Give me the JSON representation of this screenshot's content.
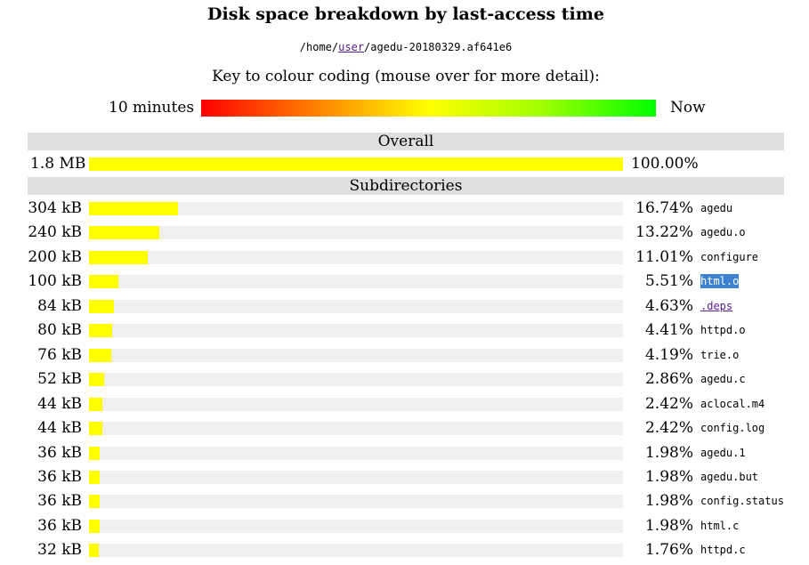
{
  "title": "Disk space breakdown by last-access time",
  "path": {
    "prefix": "/home/",
    "link": "user",
    "suffix": "/agedu-20180329.af641e6"
  },
  "key": {
    "title": "Key to colour coding (mouse over for more detail):",
    "left_label": "10 minutes",
    "right_label": "Now"
  },
  "colors": {
    "bar": "#ffff00",
    "track": "#efefef",
    "section_bg": "#dfdfdf",
    "link": "#551a8b",
    "selection": "#3d82d0"
  },
  "overall": {
    "heading": "Overall",
    "size": "1.8 MB",
    "percent": "100.00%",
    "fraction": 1.0
  },
  "subdirs_heading": "Subdirectories",
  "rows": [
    {
      "size": "304 kB",
      "percent": "16.74%",
      "fraction": 0.1674,
      "name": "agedu",
      "link": false,
      "selected": false
    },
    {
      "size": "240 kB",
      "percent": "13.22%",
      "fraction": 0.1322,
      "name": "agedu.o",
      "link": false,
      "selected": false
    },
    {
      "size": "200 kB",
      "percent": "11.01%",
      "fraction": 0.1101,
      "name": "configure",
      "link": false,
      "selected": false
    },
    {
      "size": "100 kB",
      "percent": "5.51%",
      "fraction": 0.0551,
      "name": "html.o",
      "link": false,
      "selected": true
    },
    {
      "size": "84 kB",
      "percent": "4.63%",
      "fraction": 0.0463,
      "name": ".deps",
      "link": true,
      "selected": false
    },
    {
      "size": "80 kB",
      "percent": "4.41%",
      "fraction": 0.0441,
      "name": "httpd.o",
      "link": false,
      "selected": false
    },
    {
      "size": "76 kB",
      "percent": "4.19%",
      "fraction": 0.0419,
      "name": "trie.o",
      "link": false,
      "selected": false
    },
    {
      "size": "52 kB",
      "percent": "2.86%",
      "fraction": 0.0286,
      "name": "agedu.c",
      "link": false,
      "selected": false
    },
    {
      "size": "44 kB",
      "percent": "2.42%",
      "fraction": 0.0242,
      "name": "aclocal.m4",
      "link": false,
      "selected": false
    },
    {
      "size": "44 kB",
      "percent": "2.42%",
      "fraction": 0.0242,
      "name": "config.log",
      "link": false,
      "selected": false
    },
    {
      "size": "36 kB",
      "percent": "1.98%",
      "fraction": 0.0198,
      "name": "agedu.1",
      "link": false,
      "selected": false
    },
    {
      "size": "36 kB",
      "percent": "1.98%",
      "fraction": 0.0198,
      "name": "agedu.but",
      "link": false,
      "selected": false
    },
    {
      "size": "36 kB",
      "percent": "1.98%",
      "fraction": 0.0198,
      "name": "config.status",
      "link": false,
      "selected": false
    },
    {
      "size": "36 kB",
      "percent": "1.98%",
      "fraction": 0.0198,
      "name": "html.c",
      "link": false,
      "selected": false
    },
    {
      "size": "32 kB",
      "percent": "1.76%",
      "fraction": 0.0176,
      "name": "httpd.c",
      "link": false,
      "selected": false
    }
  ]
}
